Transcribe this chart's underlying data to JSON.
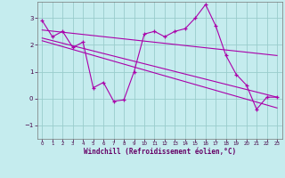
{
  "xlabel": "Windchill (Refroidissement éolien,°C)",
  "xlim": [
    -0.5,
    23.5
  ],
  "ylim": [
    -1.5,
    3.6
  ],
  "yticks": [
    -1,
    0,
    1,
    2,
    3
  ],
  "xticks": [
    0,
    1,
    2,
    3,
    4,
    5,
    6,
    7,
    8,
    9,
    10,
    11,
    12,
    13,
    14,
    15,
    16,
    17,
    18,
    19,
    20,
    21,
    22,
    23
  ],
  "bg_color": "#c5ecee",
  "line_color": "#aa00aa",
  "grid_color": "#99cccc",
  "data_x": [
    0,
    1,
    2,
    3,
    4,
    5,
    6,
    7,
    8,
    9,
    10,
    11,
    12,
    13,
    14,
    15,
    16,
    17,
    18,
    19,
    20,
    21,
    22,
    23
  ],
  "data_y": [
    2.9,
    2.3,
    2.5,
    1.9,
    2.1,
    0.4,
    0.6,
    -0.1,
    -0.05,
    1.0,
    2.4,
    2.5,
    2.3,
    2.5,
    2.6,
    3.0,
    3.5,
    2.7,
    1.6,
    0.9,
    0.5,
    -0.4,
    0.05,
    0.05
  ],
  "trend1_x": [
    0,
    23
  ],
  "trend1_y": [
    2.55,
    1.6
  ],
  "trend2_x": [
    0,
    23
  ],
  "trend2_y": [
    2.25,
    0.05
  ],
  "trend3_x": [
    0,
    23
  ],
  "trend3_y": [
    2.15,
    -0.35
  ],
  "figsize": [
    3.2,
    2.0
  ],
  "dpi": 100
}
